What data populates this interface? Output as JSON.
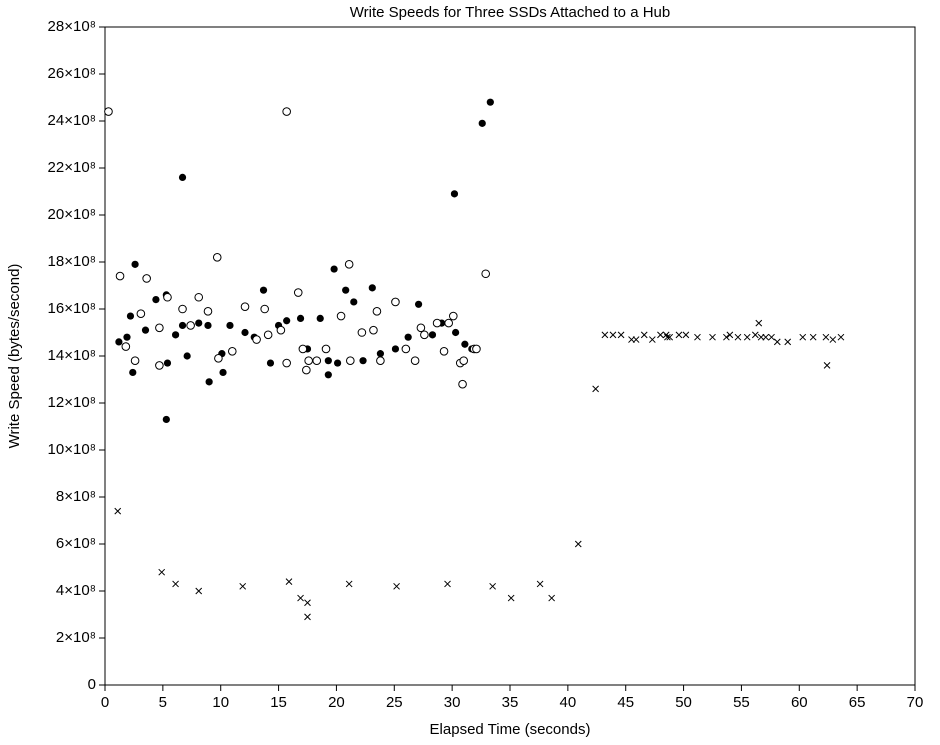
{
  "chart_data": {
    "type": "scatter",
    "title": "Write Speeds for Three SSDs Attached to a Hub",
    "x_label": "Elapsed Time (seconds)",
    "y_label": "Write Speed (bytes/second)",
    "xlim": [
      0,
      70
    ],
    "ylim": [
      0,
      2800000000
    ],
    "xticks": [
      0,
      5,
      10,
      15,
      20,
      25,
      30,
      35,
      40,
      45,
      50,
      55,
      60,
      65,
      70
    ],
    "yticks": [
      0,
      {
        "value": 200000000,
        "label": "2×10⁸"
      },
      {
        "value": 400000000,
        "label": "4×10⁸"
      },
      {
        "value": 600000000,
        "label": "6×10⁸"
      },
      {
        "value": 800000000,
        "label": "8×10⁸"
      },
      {
        "value": 1000000000,
        "label": "10×10⁸"
      },
      {
        "value": 1200000000,
        "label": "12×10⁸"
      },
      {
        "value": 1400000000,
        "label": "14×10⁸"
      },
      {
        "value": 1600000000,
        "label": "16×10⁸"
      },
      {
        "value": 1800000000,
        "label": "18×10⁸"
      },
      {
        "value": 2000000000,
        "label": "20×10⁸"
      },
      {
        "value": 2200000000,
        "label": "22×10⁸"
      },
      {
        "value": 2400000000,
        "label": "24×10⁸"
      },
      {
        "value": 2600000000,
        "label": "26×10⁸"
      },
      {
        "value": 2800000000,
        "label": "28×10⁸"
      }
    ],
    "grid": false,
    "series": [
      {
        "marker": "filled-circle",
        "color": "#000000",
        "x": [
          1.2,
          1.9,
          2.2,
          2.4,
          2.6,
          3.5,
          4.4,
          5.3,
          5.3,
          5.4,
          6.1,
          6.7,
          6.7,
          7.1,
          8.1,
          8.9,
          9.0,
          10.1,
          10.2,
          10.8,
          12.1,
          12.9,
          13.7,
          14.3,
          15.0,
          15.7,
          16.9,
          17.5,
          18.6,
          19.3,
          19.3,
          19.8,
          20.1,
          20.8,
          21.5,
          22.3,
          23.1,
          23.8,
          25.1,
          26.2,
          27.1,
          28.3,
          29.1,
          30.2,
          30.3,
          31.1,
          31.7,
          32.6,
          33.3
        ],
        "values": [
          1460000000.0,
          1480000000.0,
          1570000000.0,
          1330000000.0,
          1790000000.0,
          1510000000.0,
          1640000000.0,
          1660000000.0,
          1130000000.0,
          1370000000.0,
          1490000000.0,
          1530000000.0,
          2160000000.0,
          1400000000.0,
          1540000000.0,
          1530000000.0,
          1290000000.0,
          1410000000.0,
          1330000000.0,
          1530000000.0,
          1500000000.0,
          1480000000.0,
          1680000000.0,
          1370000000.0,
          1530000000.0,
          1550000000.0,
          1560000000.0,
          1430000000.0,
          1560000000.0,
          1380000000.0,
          1320000000.0,
          1770000000.0,
          1370000000.0,
          1680000000.0,
          1630000000.0,
          1380000000.0,
          1690000000.0,
          1410000000.0,
          1430000000.0,
          1480000000.0,
          1620000000.0,
          1490000000.0,
          1540000000.0,
          2090000000.0,
          1500000000.0,
          1450000000.0,
          1430000000.0,
          2390000000.0,
          2480000000.0
        ]
      },
      {
        "marker": "open-circle",
        "color": "#000000",
        "x": [
          0.3,
          1.3,
          1.8,
          2.6,
          3.1,
          3.6,
          4.7,
          4.7,
          5.4,
          6.7,
          7.4,
          8.1,
          8.9,
          9.7,
          9.8,
          11.0,
          12.1,
          13.1,
          13.8,
          14.1,
          15.2,
          15.7,
          15.7,
          16.7,
          17.1,
          17.4,
          17.6,
          18.3,
          19.1,
          20.4,
          21.1,
          21.2,
          22.2,
          23.2,
          23.5,
          23.8,
          25.1,
          26.0,
          26.8,
          27.3,
          27.6,
          28.7,
          29.3,
          29.7,
          30.1,
          30.7,
          30.9,
          31.0,
          31.9,
          32.1,
          32.9
        ],
        "values": [
          2440000000.0,
          1740000000.0,
          1440000000.0,
          1380000000.0,
          1580000000.0,
          1730000000.0,
          1360000000.0,
          1520000000.0,
          1650000000.0,
          1600000000.0,
          1530000000.0,
          1650000000.0,
          1590000000.0,
          1820000000.0,
          1390000000.0,
          1420000000.0,
          1610000000.0,
          1470000000.0,
          1600000000.0,
          1490000000.0,
          1510000000.0,
          2440000000.0,
          1370000000.0,
          1670000000.0,
          1430000000.0,
          1340000000.0,
          1380000000.0,
          1380000000.0,
          1430000000.0,
          1570000000.0,
          1790000000.0,
          1380000000.0,
          1500000000.0,
          1510000000.0,
          1590000000.0,
          1380000000.0,
          1630000000.0,
          1430000000.0,
          1380000000.0,
          1520000000.0,
          1490000000.0,
          1540000000.0,
          1420000000.0,
          1540000000.0,
          1570000000.0,
          1370000000.0,
          1280000000.0,
          1380000000.0,
          1430000000.0,
          1430000000.0,
          1750000000.0
        ]
      },
      {
        "marker": "x",
        "color": "#000000",
        "x": [
          1.1,
          4.9,
          6.1,
          8.1,
          11.9,
          15.9,
          16.9,
          17.5,
          17.5,
          21.1,
          25.2,
          29.6,
          33.5,
          35.1,
          37.6,
          38.6,
          40.9,
          42.4,
          43.2,
          43.9,
          44.6,
          45.5,
          45.9,
          46.6,
          47.3,
          48.0,
          48.5,
          48.6,
          48.8,
          49.6,
          50.2,
          51.2,
          52.5,
          53.7,
          54.0,
          54.7,
          55.5,
          56.2,
          56.5,
          56.7,
          57.1,
          57.6,
          58.1,
          59.0,
          60.3,
          61.2,
          62.3,
          62.4,
          62.9,
          63.6
        ],
        "values": [
          740000000.0,
          480000000.0,
          430000000.0,
          400000000.0,
          420000000.0,
          440000000.0,
          370000000.0,
          350000000.0,
          290000000.0,
          430000000.0,
          420000000.0,
          430000000.0,
          420000000.0,
          370000000.0,
          430000000.0,
          370000000.0,
          600000000.0,
          1260000000.0,
          1490000000.0,
          1490000000.0,
          1490000000.0,
          1470000000.0,
          1470000000.0,
          1490000000.0,
          1470000000.0,
          1490000000.0,
          1490000000.0,
          1480000000.0,
          1480000000.0,
          1490000000.0,
          1490000000.0,
          1480000000.0,
          1480000000.0,
          1480000000.0,
          1490000000.0,
          1480000000.0,
          1480000000.0,
          1490000000.0,
          1540000000.0,
          1480000000.0,
          1480000000.0,
          1480000000.0,
          1460000000.0,
          1460000000.0,
          1480000000.0,
          1480000000.0,
          1480000000.0,
          1360000000.0,
          1470000000.0,
          1480000000.0
        ]
      }
    ]
  }
}
